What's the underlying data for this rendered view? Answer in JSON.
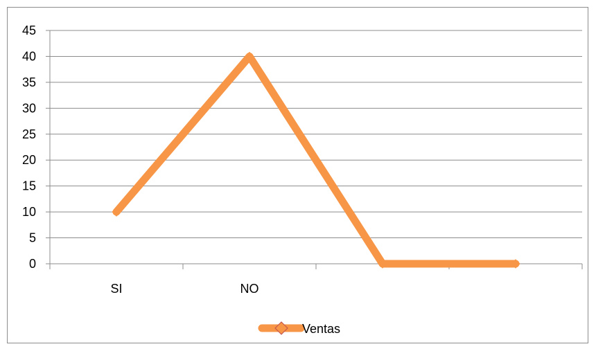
{
  "chart_data": {
    "type": "line",
    "categories": [
      "SI",
      "NO",
      "",
      ""
    ],
    "series": [
      {
        "name": "Ventas",
        "values": [
          10,
          40,
          0,
          0
        ],
        "color": "#F79646",
        "marker": "diamond"
      }
    ],
    "ylim": [
      0,
      45
    ],
    "yticks": [
      0,
      5,
      10,
      15,
      20,
      25,
      30,
      35,
      40,
      45
    ],
    "grid": true,
    "legend_position": "bottom",
    "colors": {
      "gridline": "#8c8c8c",
      "axis": "#8c8c8c",
      "series": "#F79646",
      "marker": "#C0504D"
    }
  }
}
